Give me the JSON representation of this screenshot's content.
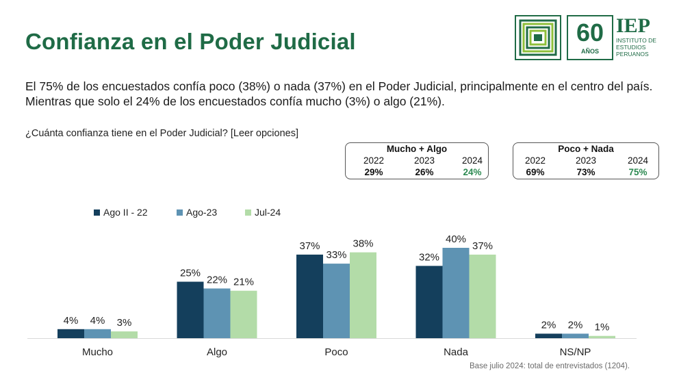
{
  "title": "Confianza en el Poder Judicial",
  "summary": "El 75% de los encuestados confía poco (38%) o nada (37%) en el Poder Judicial, principalmente en el centro del país. Mientras que solo el 24%  de los encuestados confía mucho (3%) o algo (21%).",
  "question": "¿Cuánta confianza tiene en el Poder Judicial? [Leer opciones]",
  "logo": {
    "number": "60",
    "anos": "AÑOS",
    "acronym": "IEP",
    "line1": "INSTITUTO DE",
    "line2": "ESTUDIOS",
    "line3": "PERUANOS"
  },
  "boxes": [
    {
      "title": "Mucho + Algo",
      "years": [
        "2022",
        "2023",
        "2024"
      ],
      "values": [
        "29%",
        "26%",
        "24%"
      ]
    },
    {
      "title": "Poco + Nada",
      "years": [
        "2022",
        "2023",
        "2024"
      ],
      "values": [
        "69%",
        "73%",
        "75%"
      ]
    }
  ],
  "colors": {
    "brand_green": "#1f6b46",
    "highlight_green": "#2d8a52",
    "series1": "#143f5c",
    "series2": "#5e93b3",
    "series3": "#b3dca8"
  },
  "footnote": "Base julio 2024: total de entrevistados (1204).",
  "chart_data": {
    "type": "bar",
    "categories": [
      "Mucho",
      "Algo",
      "Poco",
      "Nada",
      "NS/NP"
    ],
    "series": [
      {
        "name": "Ago II - 22",
        "values": [
          4,
          25,
          37,
          32,
          2
        ],
        "color": "#143f5c"
      },
      {
        "name": "Ago-23",
        "values": [
          4,
          22,
          33,
          40,
          2
        ],
        "color": "#5e93b3"
      },
      {
        "name": "Jul-24",
        "values": [
          3,
          21,
          38,
          37,
          1
        ],
        "color": "#b3dca8"
      }
    ],
    "value_suffix": "%",
    "ylim": [
      0,
      40
    ],
    "grid": false,
    "legend_position": "top-left"
  }
}
